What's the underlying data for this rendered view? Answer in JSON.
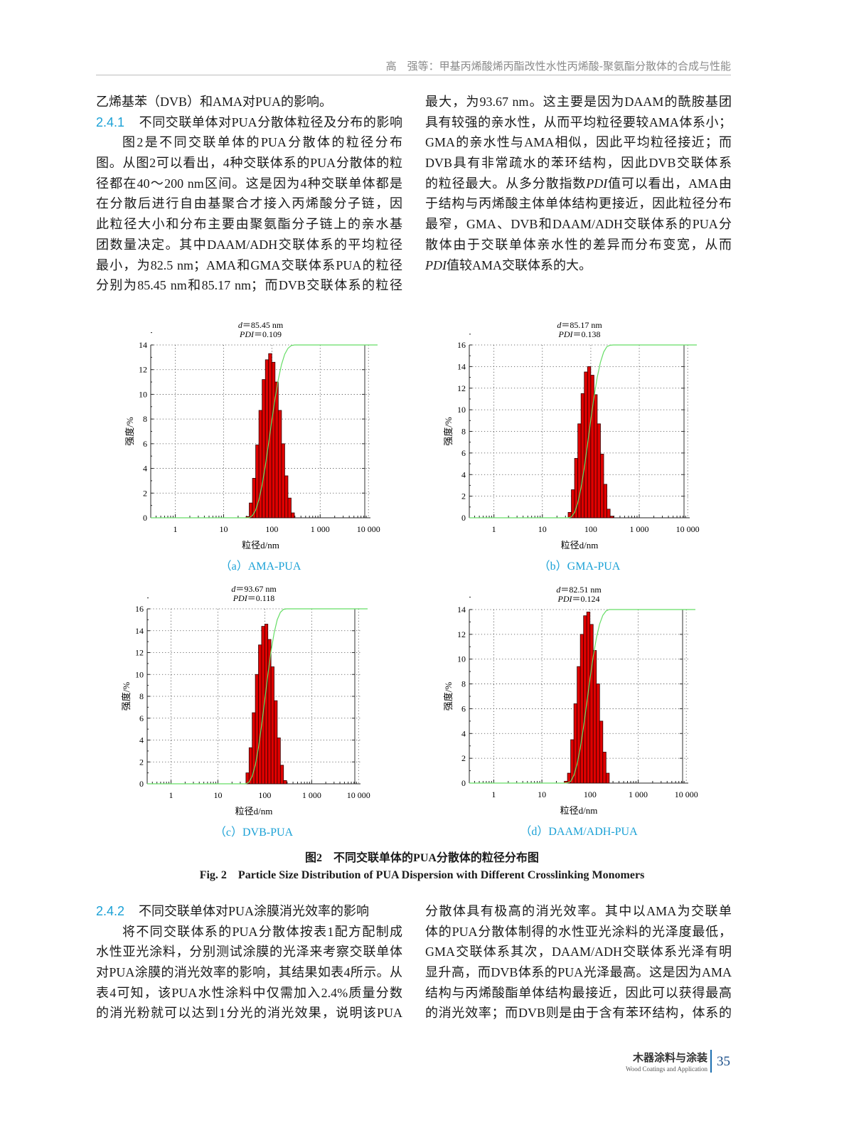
{
  "header": {
    "running_title": "高　强等：甲基丙烯酸烯丙酯改性水性丙烯酸-聚氨酯分散体的合成与性能"
  },
  "text": {
    "top_left": [
      {
        "segs": [
          "乙烯基苯（DVB）和AMA对PUA的影响。"
        ],
        "last": true
      },
      {
        "section": "2.4.1",
        "segs": [
          "不同交联单体对PUA分散体粒径及分布的影响"
        ]
      },
      {
        "segs": [
          "图2是不同交联单体的PUA分散体的粒径分布"
        ],
        "indent": true
      },
      {
        "segs": [
          "图。从图2可以看出，4种交联体系的PUA分散体的粒"
        ]
      },
      {
        "segs": [
          "径都在40～200 nm区间。这是因为4种交联单体都是"
        ]
      },
      {
        "segs": [
          "在分散后进行自由基聚合才接入丙烯酸分子链，因"
        ]
      },
      {
        "segs": [
          "此粒径大小和分布主要由聚氨酯分子链上的亲水基"
        ]
      },
      {
        "segs": [
          "团数量决定。其中DAAM/ADH交联体系的平均粒径"
        ]
      },
      {
        "segs": [
          "最小，为82.5 nm；AMA和GMA交联体系PUA的粒径"
        ]
      },
      {
        "segs": [
          "分别为85.45 nm和85.17 nm；而DVB交联体系的粒径"
        ]
      }
    ],
    "top_right": [
      {
        "segs": [
          "最大，为93.67 nm。这主要是因为DAAM的酰胺基团"
        ]
      },
      {
        "segs": [
          "具有较强的亲水性，从而平均粒径要较AMA体系小；"
        ]
      },
      {
        "segs": [
          "GMA的亲水性与AMA相似，因此平均粒径接近；而"
        ]
      },
      {
        "segs": [
          "DVB具有非常疏水的苯环结构，因此DVB交联体系"
        ]
      },
      {
        "segs": [
          "的粒径最大。从多分散指数",
          "PDI",
          "值可以看出，AMA由"
        ],
        "italic": [
          1
        ]
      },
      {
        "segs": [
          "于结构与丙烯酸主体单体结构更接近，因此粒径分布"
        ]
      },
      {
        "segs": [
          "最窄，GMA、DVB和DAAM/ADH交联体系的PUA分"
        ]
      },
      {
        "segs": [
          "散体由于交联单体亲水性的差异而分布变宽，从而"
        ]
      },
      {
        "segs": [
          "PDI",
          "值较AMA交联体系的大。"
        ],
        "italic": [
          0
        ],
        "last": true
      }
    ],
    "bottom_left": [
      {
        "section": "2.4.2",
        "segs": [
          "不同交联单体对PUA涂膜消光效率的影响"
        ],
        "last": true
      },
      {
        "segs": [
          "将不同交联体系的PUA分散体按表1配方配制成"
        ],
        "indent": true
      },
      {
        "segs": [
          "水性亚光涂料，分别测试涂膜的光泽来考察交联单体"
        ]
      },
      {
        "segs": [
          "对PUA涂膜的消光效率的影响，其结果如表4所示。从"
        ]
      },
      {
        "segs": [
          "表4可知，该PUA水性涂料中仅需加入2.4%质量分数"
        ]
      },
      {
        "segs": [
          "的消光粉就可以达到1分光的消光效果，说明该PUA"
        ]
      }
    ],
    "bottom_right": [
      {
        "segs": [
          "分散体具有极高的消光效率。其中以AMA为交联单"
        ]
      },
      {
        "segs": [
          "体的PUA分散体制得的水性亚光涂料的光泽度最低，"
        ]
      },
      {
        "segs": [
          "GMA交联体系其次，DAAM/ADH交联体系光泽有明"
        ]
      },
      {
        "segs": [
          "显升高，而DVB体系的PUA光泽最高。这是因为AMA"
        ]
      },
      {
        "segs": [
          "结构与丙烯酸酯单体结构最接近，因此可以获得最高"
        ]
      },
      {
        "segs": [
          "的消光效率；而DVB则是由于含有苯环结构，体系的"
        ]
      }
    ]
  },
  "figure": {
    "caption_cn": "图2　不同交联单体的PUA分散体的粒径分布图",
    "caption_en": "Fig. 2　Particle Size Distribution of PUA Dispersion with Different Crosslinking Monomers"
  },
  "chart_data": [
    {
      "type": "bar",
      "id": "a",
      "subcaption": "（a）AMA-PUA",
      "d_symbol": "d",
      "d_value": "＝85.45 nm",
      "pdi_symbol": "PDI",
      "pdi_value": "＝0.109",
      "xlabel": "粒径d/nm",
      "ylabel": "强度/%",
      "xscale": "log",
      "xlim": [
        0.31,
        11000
      ],
      "ylim": [
        0,
        14
      ],
      "yticks": [
        0,
        2,
        4,
        6,
        8,
        10,
        12,
        14
      ],
      "xticks": [
        1,
        10,
        100,
        1000,
        10000
      ],
      "xtick_labels": [
        "1",
        "10",
        "100",
        "1 000",
        "10 000"
      ],
      "grid": true,
      "x": [
        31.5,
        36.7,
        42.8,
        49.9,
        58.2,
        67.9,
        79.2,
        92.3,
        107.7,
        125.6,
        146.5,
        170.8,
        199.2,
        232.3,
        271
      ],
      "values": [
        0.1,
        1.2,
        3.2,
        5.9,
        8.7,
        11.2,
        12.8,
        13.3,
        12.6,
        11.0,
        8.7,
        6.0,
        3.4,
        1.6,
        0.4
      ],
      "bar_color": "#e00000",
      "cumulative_color": "#66dd66"
    },
    {
      "type": "bar",
      "id": "b",
      "subcaption": "（b）GMA-PUA",
      "d_symbol": "d",
      "d_value": "＝85.17 nm",
      "pdi_symbol": "PDI",
      "pdi_value": "＝0.138",
      "xlabel": "粒径d/nm",
      "ylabel": "强度/%",
      "xscale": "log",
      "xlim": [
        0.31,
        11000
      ],
      "ylim": [
        0,
        16
      ],
      "yticks": [
        0,
        2,
        4,
        6,
        8,
        10,
        12,
        14,
        16
      ],
      "xticks": [
        1,
        10,
        100,
        1000,
        10000
      ],
      "xtick_labels": [
        "1",
        "10",
        "100",
        "1 000",
        "10 000"
      ],
      "grid": true,
      "x": [
        36.7,
        42.8,
        49.9,
        58.2,
        67.9,
        79.2,
        92.3,
        107.7,
        125.6,
        146.5,
        170.8,
        199.2,
        232.3,
        271
      ],
      "values": [
        0.5,
        2.6,
        5.5,
        8.7,
        11.5,
        13.5,
        14.0,
        13.2,
        11.4,
        8.7,
        5.9,
        3.1,
        0.8,
        0.15
      ],
      "bar_color": "#e00000",
      "cumulative_color": "#66dd66"
    },
    {
      "type": "bar",
      "id": "c",
      "subcaption": "（c）DVB-PUA",
      "d_symbol": "d",
      "d_value": "＝93.67 nm",
      "pdi_symbol": "PDI",
      "pdi_value": "＝0.118",
      "xlabel": "粒径d/nm",
      "ylabel": "强度/%",
      "xscale": "log",
      "xlim": [
        0.31,
        11000
      ],
      "ylim": [
        0,
        16
      ],
      "yticks": [
        0,
        2,
        4,
        6,
        8,
        10,
        12,
        14,
        16
      ],
      "xticks": [
        1,
        10,
        100,
        1000,
        10000
      ],
      "xtick_labels": [
        "1",
        "10",
        "100",
        "1 000",
        "10 000"
      ],
      "grid": true,
      "x": [
        42.8,
        49.9,
        58.2,
        67.9,
        79.2,
        92.3,
        107.7,
        125.6,
        146.5,
        170.8,
        199.2,
        232.3,
        271
      ],
      "values": [
        1.0,
        3.3,
        6.5,
        10.0,
        12.7,
        14.4,
        14.6,
        13.2,
        10.7,
        7.6,
        4.2,
        1.7,
        0.3
      ],
      "bar_color": "#e00000",
      "cumulative_color": "#66dd66"
    },
    {
      "type": "bar",
      "id": "d",
      "subcaption": "（d）DAAM/ADH-PUA",
      "d_symbol": "d",
      "d_value": "＝82.51 nm",
      "pdi_symbol": "PDI",
      "pdi_value": "＝0.124",
      "xlabel": "粒径d/nm",
      "ylabel": "强度/%",
      "xscale": "log",
      "xlim": [
        0.31,
        11000
      ],
      "ylim": [
        0,
        14
      ],
      "yticks": [
        0,
        2,
        4,
        6,
        8,
        10,
        12,
        14
      ],
      "xticks": [
        1,
        10,
        100,
        1000,
        10000
      ],
      "xtick_labels": [
        "1",
        "10",
        "100",
        "1 000",
        "10 000"
      ],
      "grid": true,
      "x": [
        31.5,
        36.7,
        42.8,
        49.9,
        58.2,
        67.9,
        79.2,
        92.3,
        107.7,
        125.6,
        146.5,
        170.8,
        199.2,
        232.3
      ],
      "values": [
        0.15,
        0.8,
        3.5,
        6.4,
        9.4,
        12.0,
        13.5,
        13.8,
        12.8,
        10.7,
        8.0,
        5.0,
        2.5,
        0.8
      ],
      "bar_color": "#e00000",
      "cumulative_color": "#66dd66"
    }
  ],
  "footer": {
    "journal_cn": "木器涂料与涂装",
    "journal_en": "Wood Coatings and Application",
    "page_number": "35",
    "accent": "#1b6fb0"
  },
  "colors": {
    "section_number": "#1ba1d6",
    "subcaption": "#1ba1d6",
    "header_text": "#8a8a8a"
  }
}
